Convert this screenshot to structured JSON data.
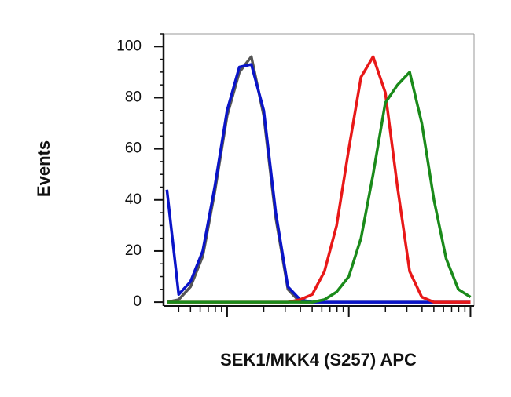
{
  "chart_data": {
    "type": "line",
    "log_x": true,
    "x_label": "SEK1/MKK4 (S257) APC",
    "y_label": "Events",
    "x": [
      32,
      40,
      50,
      63,
      79,
      100,
      126,
      158,
      200,
      251,
      316,
      398,
      501,
      631,
      794,
      1000,
      1259,
      1585,
      1995,
      2512,
      3162,
      3981,
      5012,
      6310,
      7943,
      10000
    ],
    "series": [
      {
        "color": "#555555",
        "values": [
          0,
          1,
          6,
          18,
          43,
          73,
          90,
          96,
          73,
          33,
          5,
          0,
          0,
          0,
          0,
          0,
          0,
          0,
          0,
          0,
          0,
          0,
          0,
          0,
          0,
          0
        ]
      },
      {
        "color": "#0a14c8",
        "values": [
          44,
          3,
          8,
          20,
          45,
          75,
          92,
          93,
          75,
          35,
          6,
          1,
          0,
          0,
          0,
          0,
          0,
          0,
          0,
          0,
          0,
          0,
          0,
          0,
          0,
          0
        ]
      },
      {
        "color": "#e81818",
        "values": [
          0,
          0,
          0,
          0,
          0,
          0,
          0,
          0,
          0,
          0,
          0,
          1,
          3,
          12,
          30,
          60,
          88,
          96,
          82,
          45,
          12,
          2,
          0,
          0,
          0,
          0
        ]
      },
      {
        "color": "#1a8a1a",
        "values": [
          0,
          0,
          0,
          0,
          0,
          0,
          0,
          0,
          0,
          0,
          0,
          0,
          0,
          1,
          4,
          10,
          25,
          50,
          78,
          85,
          90,
          70,
          40,
          17,
          5,
          2
        ]
      }
    ],
    "xlim": [
      30,
      10700
    ],
    "xticks": [
      100,
      1000,
      10000
    ],
    "ylim": [
      -1.5,
      105
    ],
    "yticks": [
      0,
      20,
      40,
      60,
      80,
      100
    ]
  }
}
